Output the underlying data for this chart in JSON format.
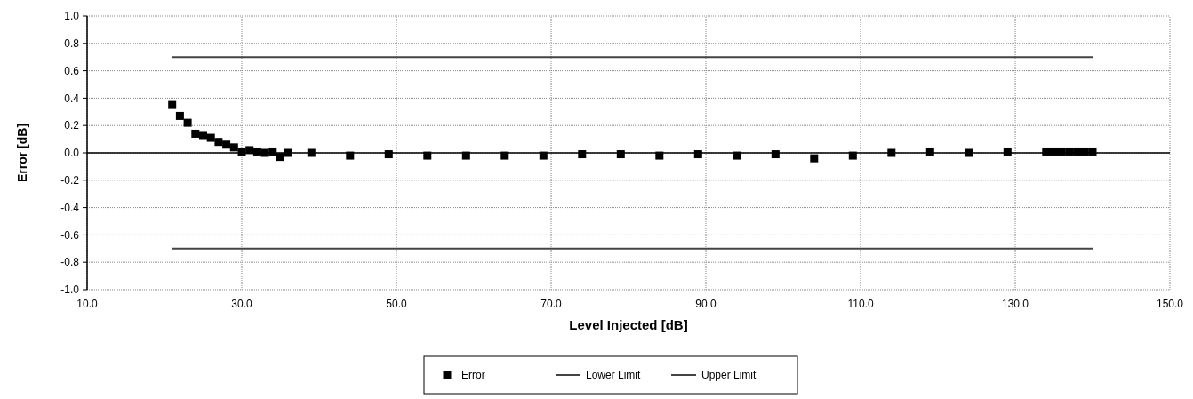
{
  "chart_data": {
    "type": "scatter",
    "xlabel": "Level Injected [dB]",
    "ylabel": "Error [dB]",
    "xlim": [
      10,
      150
    ],
    "xticks": [
      {
        "value": 10,
        "label": "10.0"
      },
      {
        "value": 30,
        "label": "30.0"
      },
      {
        "value": 50,
        "label": "50.0"
      },
      {
        "value": 70,
        "label": "70.0"
      },
      {
        "value": 90,
        "label": "90.0"
      },
      {
        "value": 110,
        "label": "110.0"
      },
      {
        "value": 130,
        "label": "130.0"
      },
      {
        "value": 150,
        "label": "150.0"
      }
    ],
    "ylim": [
      -1,
      1
    ],
    "yticks": [
      {
        "value": -1,
        "label": "-1.0"
      },
      {
        "value": -0.8,
        "label": "-0.8"
      },
      {
        "value": -0.6,
        "label": "-0.6"
      },
      {
        "value": -0.4,
        "label": "-0.4"
      },
      {
        "value": -0.2,
        "label": "-0.2"
      },
      {
        "value": 0,
        "label": "0.0"
      },
      {
        "value": 0.2,
        "label": "0.2"
      },
      {
        "value": 0.4,
        "label": "0.4"
      },
      {
        "value": 0.6,
        "label": "0.6"
      },
      {
        "value": 0.8,
        "label": "0.8"
      },
      {
        "value": 1,
        "label": "1.0"
      }
    ],
    "grid": true,
    "legend": "bottom",
    "marker": "square",
    "series": [
      {
        "name": "Error",
        "color": "#000000",
        "x": [
          21,
          22,
          23,
          24,
          25,
          26,
          27,
          28,
          29,
          30,
          31,
          32,
          33,
          34,
          35,
          36,
          39,
          44,
          49,
          54,
          59,
          64,
          69,
          74,
          79,
          84,
          89,
          94,
          99,
          104,
          109,
          114,
          119,
          124,
          129,
          134,
          135,
          136,
          137,
          138,
          139,
          140
        ],
        "values": [
          0.35,
          0.27,
          0.22,
          0.14,
          0.13,
          0.11,
          0.08,
          0.06,
          0.04,
          0.01,
          0.02,
          0.01,
          0.0,
          0.01,
          -0.03,
          0.0,
          0.0,
          -0.02,
          -0.01,
          -0.02,
          -0.02,
          -0.02,
          -0.02,
          -0.01,
          -0.01,
          -0.02,
          -0.01,
          -0.02,
          -0.01,
          -0.04,
          -0.02,
          0.0,
          0.01,
          0.0,
          0.01,
          0.01,
          0.01,
          0.01,
          0.01,
          0.01,
          0.01,
          0.01
        ]
      },
      {
        "name": "Lower Limit",
        "type": "line",
        "color": "#444444",
        "marker": "none",
        "x": [
          21,
          140
        ],
        "values": [
          -0.7,
          -0.7
        ]
      },
      {
        "name": "Upper Limit",
        "type": "line",
        "color": "#444444",
        "marker": "none",
        "x": [
          21,
          140
        ],
        "values": [
          0.7,
          0.7
        ]
      }
    ]
  }
}
